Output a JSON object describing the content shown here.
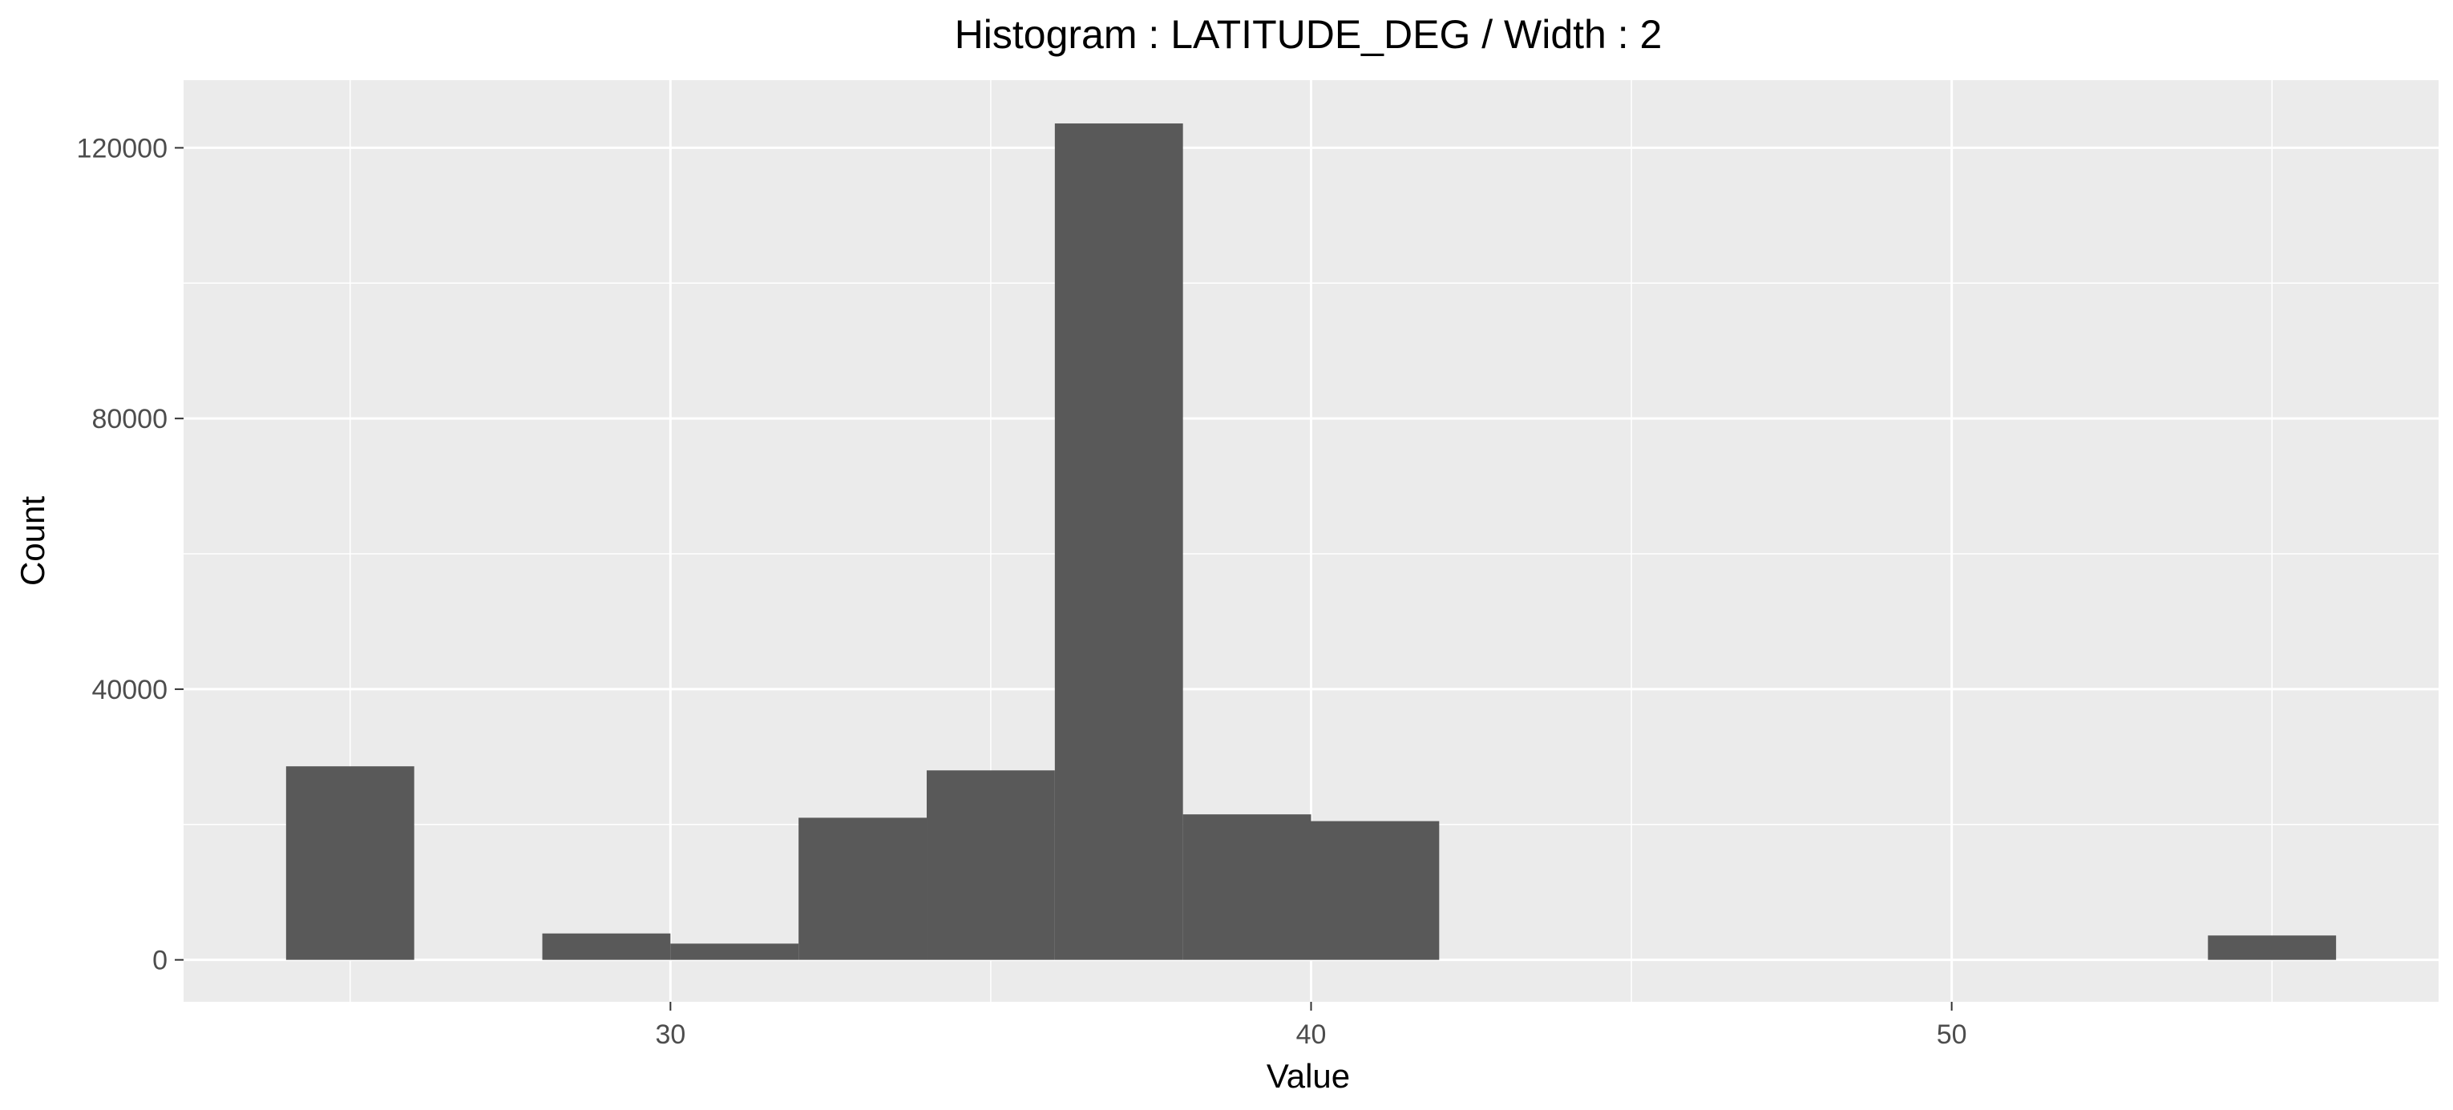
{
  "chart_data": {
    "type": "bar",
    "title": "Histogram : LATITUDE_DEG / Width : 2",
    "xlabel": "Value",
    "ylabel": "Count",
    "bin_width": 2,
    "bins": [
      {
        "start": 24,
        "end": 26,
        "count": 28600
      },
      {
        "start": 26,
        "end": 28,
        "count": 0
      },
      {
        "start": 28,
        "end": 30,
        "count": 3900
      },
      {
        "start": 30,
        "end": 32,
        "count": 2400
      },
      {
        "start": 32,
        "end": 34,
        "count": 21000
      },
      {
        "start": 34,
        "end": 36,
        "count": 28000
      },
      {
        "start": 36,
        "end": 38,
        "count": 123600
      },
      {
        "start": 38,
        "end": 40,
        "count": 21500
      },
      {
        "start": 40,
        "end": 42,
        "count": 20500
      },
      {
        "start": 54,
        "end": 56,
        "count": 3600
      }
    ],
    "xlim": [
      22.4,
      57.6
    ],
    "ylim": [
      -6200,
      130000
    ],
    "x_ticks": [
      30,
      40,
      50
    ],
    "x_tick_labels": [
      "30",
      "40",
      "50"
    ],
    "y_ticks": [
      0,
      40000,
      80000,
      120000
    ],
    "y_tick_labels": [
      "0",
      "40000",
      "80000",
      "120000"
    ],
    "x_minor_ticks": [
      25,
      35,
      45,
      55
    ],
    "y_minor_ticks": [
      20000,
      60000,
      100000
    ],
    "grid": true,
    "colors": {
      "bar": "#595959",
      "panel": "#ebebeb",
      "grid": "#ffffff",
      "tick": "#333333"
    }
  }
}
